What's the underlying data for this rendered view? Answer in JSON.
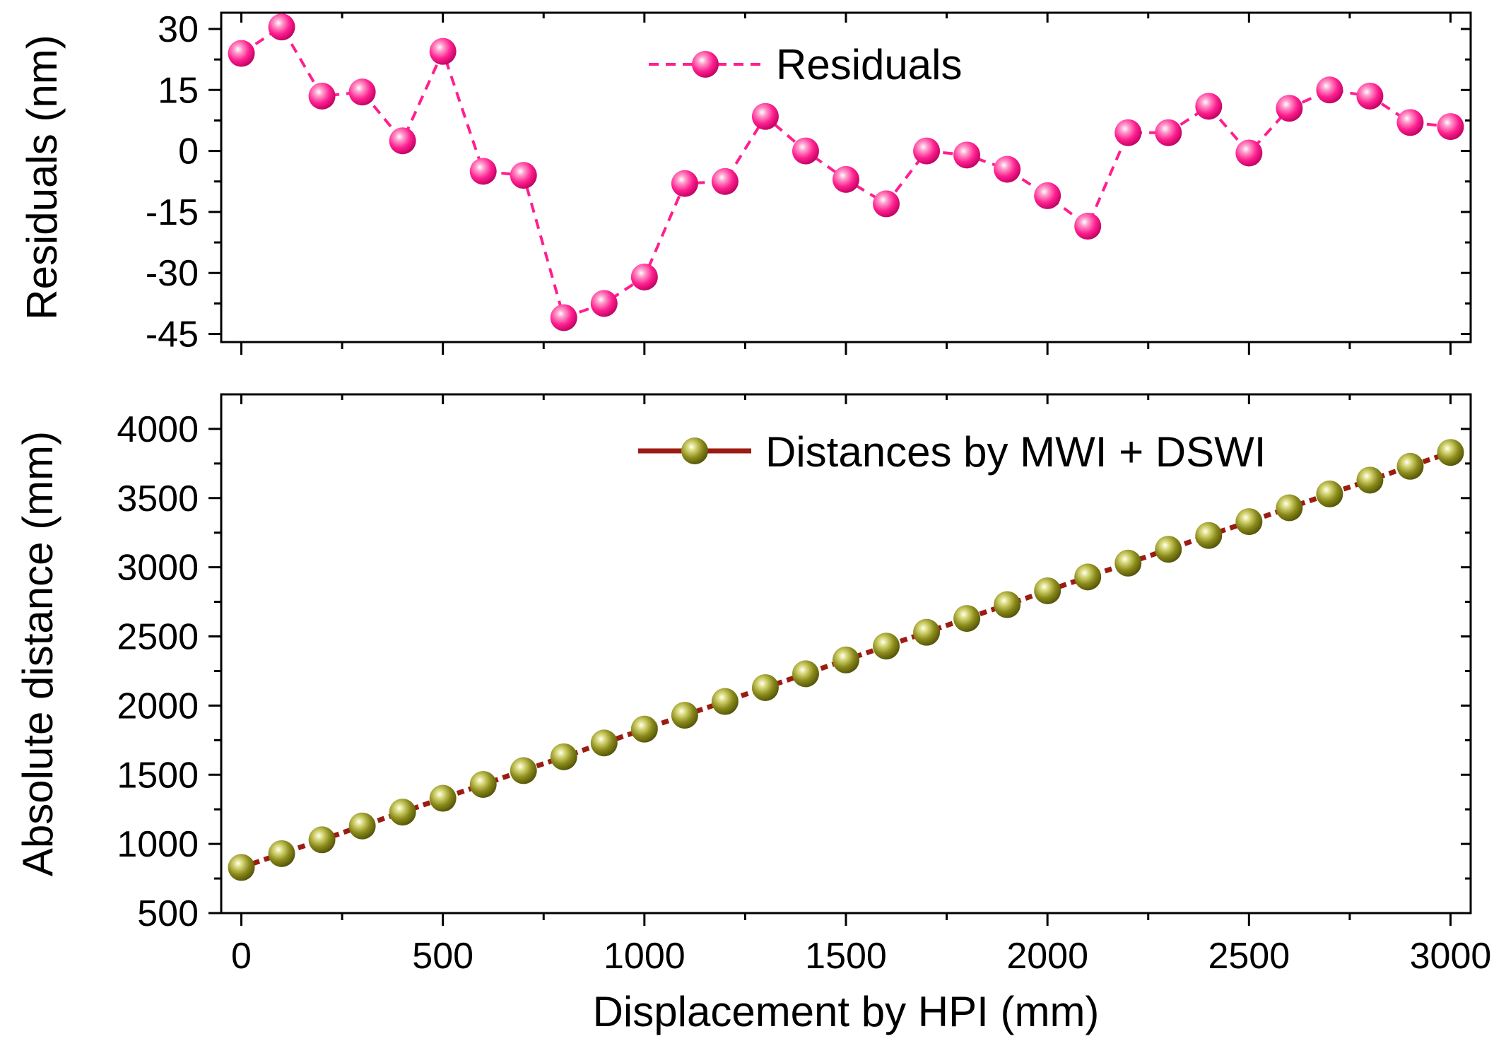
{
  "chart_data": [
    {
      "type": "line",
      "panel": "top",
      "ylabel": "Residuals (nm)",
      "xlim": [
        -50,
        3050
      ],
      "ylim": [
        -47,
        34
      ],
      "yticks": [
        30,
        15,
        0,
        -15,
        -30,
        -45
      ],
      "ytick_labels": [
        "30",
        "15",
        "0",
        "-15",
        "-30",
        "-45"
      ],
      "legend_position": "top-center",
      "series": [
        {
          "name": "Residuals",
          "color": "#ff1f8f",
          "marker_color": "#ff1f8f",
          "line_style": "dashed",
          "x": [
            0,
            100,
            200,
            300,
            400,
            500,
            600,
            700,
            800,
            900,
            1000,
            1100,
            1200,
            1300,
            1400,
            1500,
            1600,
            1700,
            1800,
            1900,
            2000,
            2100,
            2200,
            2300,
            2400,
            2500,
            2600,
            2700,
            2800,
            2900,
            3000
          ],
          "values": [
            24,
            30.5,
            13.5,
            14.5,
            2.5,
            24.5,
            -5,
            -6,
            -41,
            -37.5,
            -31,
            -8,
            -7.5,
            8.5,
            0,
            -7,
            -13,
            0,
            -1,
            -4.5,
            -11,
            -18.5,
            4.5,
            4.5,
            11,
            -0.5,
            10.5,
            15,
            13.5,
            7,
            6
          ]
        }
      ]
    },
    {
      "type": "line",
      "panel": "bottom",
      "xlabel": "Displacement by HPI (mm)",
      "ylabel": "Absolute distance (mm)",
      "xlim": [
        -50,
        3050
      ],
      "ylim": [
        500,
        4250
      ],
      "xticks": [
        0,
        500,
        1000,
        1500,
        2000,
        2500,
        3000
      ],
      "xtick_labels": [
        "0",
        "500",
        "1000",
        "1500",
        "2000",
        "2500",
        "3000"
      ],
      "yticks": [
        500,
        1000,
        1500,
        2000,
        2500,
        3000,
        3500,
        4000
      ],
      "ytick_labels": [
        "500",
        "1000",
        "1500",
        "2000",
        "2500",
        "3000",
        "3500",
        "4000"
      ],
      "legend_position": "top-right",
      "series": [
        {
          "name": "Distances by MWI + DSWI",
          "color": "#9b1c12",
          "marker_color": "#8a8a1a",
          "line_style": "dotted",
          "x": [
            0,
            100,
            200,
            300,
            400,
            500,
            600,
            700,
            800,
            900,
            1000,
            1100,
            1200,
            1300,
            1400,
            1500,
            1600,
            1700,
            1800,
            1900,
            2000,
            2100,
            2200,
            2300,
            2400,
            2500,
            2600,
            2700,
            2800,
            2900,
            3000
          ],
          "values": [
            830,
            930,
            1030,
            1130,
            1230,
            1330,
            1430,
            1530,
            1630,
            1730,
            1830,
            1930,
            2030,
            2130,
            2230,
            2330,
            2430,
            2530,
            2630,
            2730,
            2830,
            2930,
            3030,
            3130,
            3230,
            3330,
            3430,
            3530,
            3630,
            3730,
            3830
          ]
        }
      ]
    }
  ]
}
